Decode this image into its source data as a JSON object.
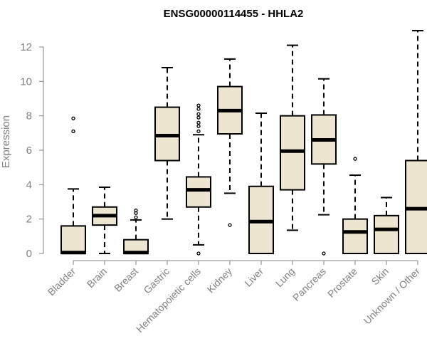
{
  "chart_data": {
    "type": "boxplot",
    "title": "ENSG00000114455 - HHLA2",
    "xlabel": "",
    "ylabel": "Expression",
    "ylim": [
      0,
      12
    ],
    "yticks": [
      0,
      2,
      4,
      6,
      8,
      10,
      12
    ],
    "grid": false,
    "colors": {
      "box_fill": "#ede5cf",
      "stroke": "#000000",
      "axis": "#808080"
    },
    "categories": [
      "Bladder",
      "Brain",
      "Breast",
      "Gastric",
      "Hematopoietic cells",
      "Kidney",
      "Liver",
      "Lung",
      "Pancreas",
      "Prostate",
      "Skin",
      "Unknown / Other"
    ],
    "boxes": [
      {
        "name": "Bladder",
        "whisker_low": 0,
        "q1": 0,
        "median": 0.05,
        "q3": 1.6,
        "whisker_high": 3.75,
        "outliers": [
          7.1,
          7.85
        ]
      },
      {
        "name": "Brain",
        "whisker_low": 0,
        "q1": 1.65,
        "median": 2.2,
        "q3": 2.7,
        "whisker_high": 3.85,
        "outliers": []
      },
      {
        "name": "Breast",
        "whisker_low": 0,
        "q1": 0,
        "median": 0.05,
        "q3": 0.8,
        "whisker_high": 1.95,
        "outliers": [
          2.1,
          2.35,
          2.5
        ]
      },
      {
        "name": "Gastric",
        "whisker_low": 2.0,
        "q1": 5.4,
        "median": 6.85,
        "q3": 8.5,
        "whisker_high": 10.8,
        "outliers": []
      },
      {
        "name": "Hematopoietic cells",
        "whisker_low": 0.5,
        "q1": 2.7,
        "median": 3.7,
        "q3": 4.45,
        "whisker_high": 6.9,
        "outliers": [
          0.0,
          7.1,
          7.4,
          7.6,
          7.9,
          8.1,
          8.4,
          8.6
        ]
      },
      {
        "name": "Kidney",
        "whisker_low": 3.5,
        "q1": 6.95,
        "median": 8.3,
        "q3": 9.7,
        "whisker_high": 11.3,
        "outliers": [
          1.65
        ]
      },
      {
        "name": "Liver",
        "whisker_low": 0,
        "q1": 0,
        "median": 1.85,
        "q3": 3.9,
        "whisker_high": 8.15,
        "outliers": []
      },
      {
        "name": "Lung",
        "whisker_low": 1.35,
        "q1": 3.7,
        "median": 5.95,
        "q3": 8.0,
        "whisker_high": 12.1,
        "outliers": []
      },
      {
        "name": "Pancreas",
        "whisker_low": 2.25,
        "q1": 5.2,
        "median": 6.6,
        "q3": 8.05,
        "whisker_high": 10.15,
        "outliers": [
          0.0
        ]
      },
      {
        "name": "Prostate",
        "whisker_low": 0,
        "q1": 0,
        "median": 1.25,
        "q3": 2.0,
        "whisker_high": 4.55,
        "outliers": [
          5.5
        ]
      },
      {
        "name": "Skin",
        "whisker_low": 0,
        "q1": 0,
        "median": 1.4,
        "q3": 2.2,
        "whisker_high": 3.25,
        "outliers": []
      },
      {
        "name": "Unknown / Other",
        "whisker_low": 0,
        "q1": 0,
        "median": 2.6,
        "q3": 5.4,
        "whisker_high": 12.95,
        "outliers": []
      }
    ]
  }
}
